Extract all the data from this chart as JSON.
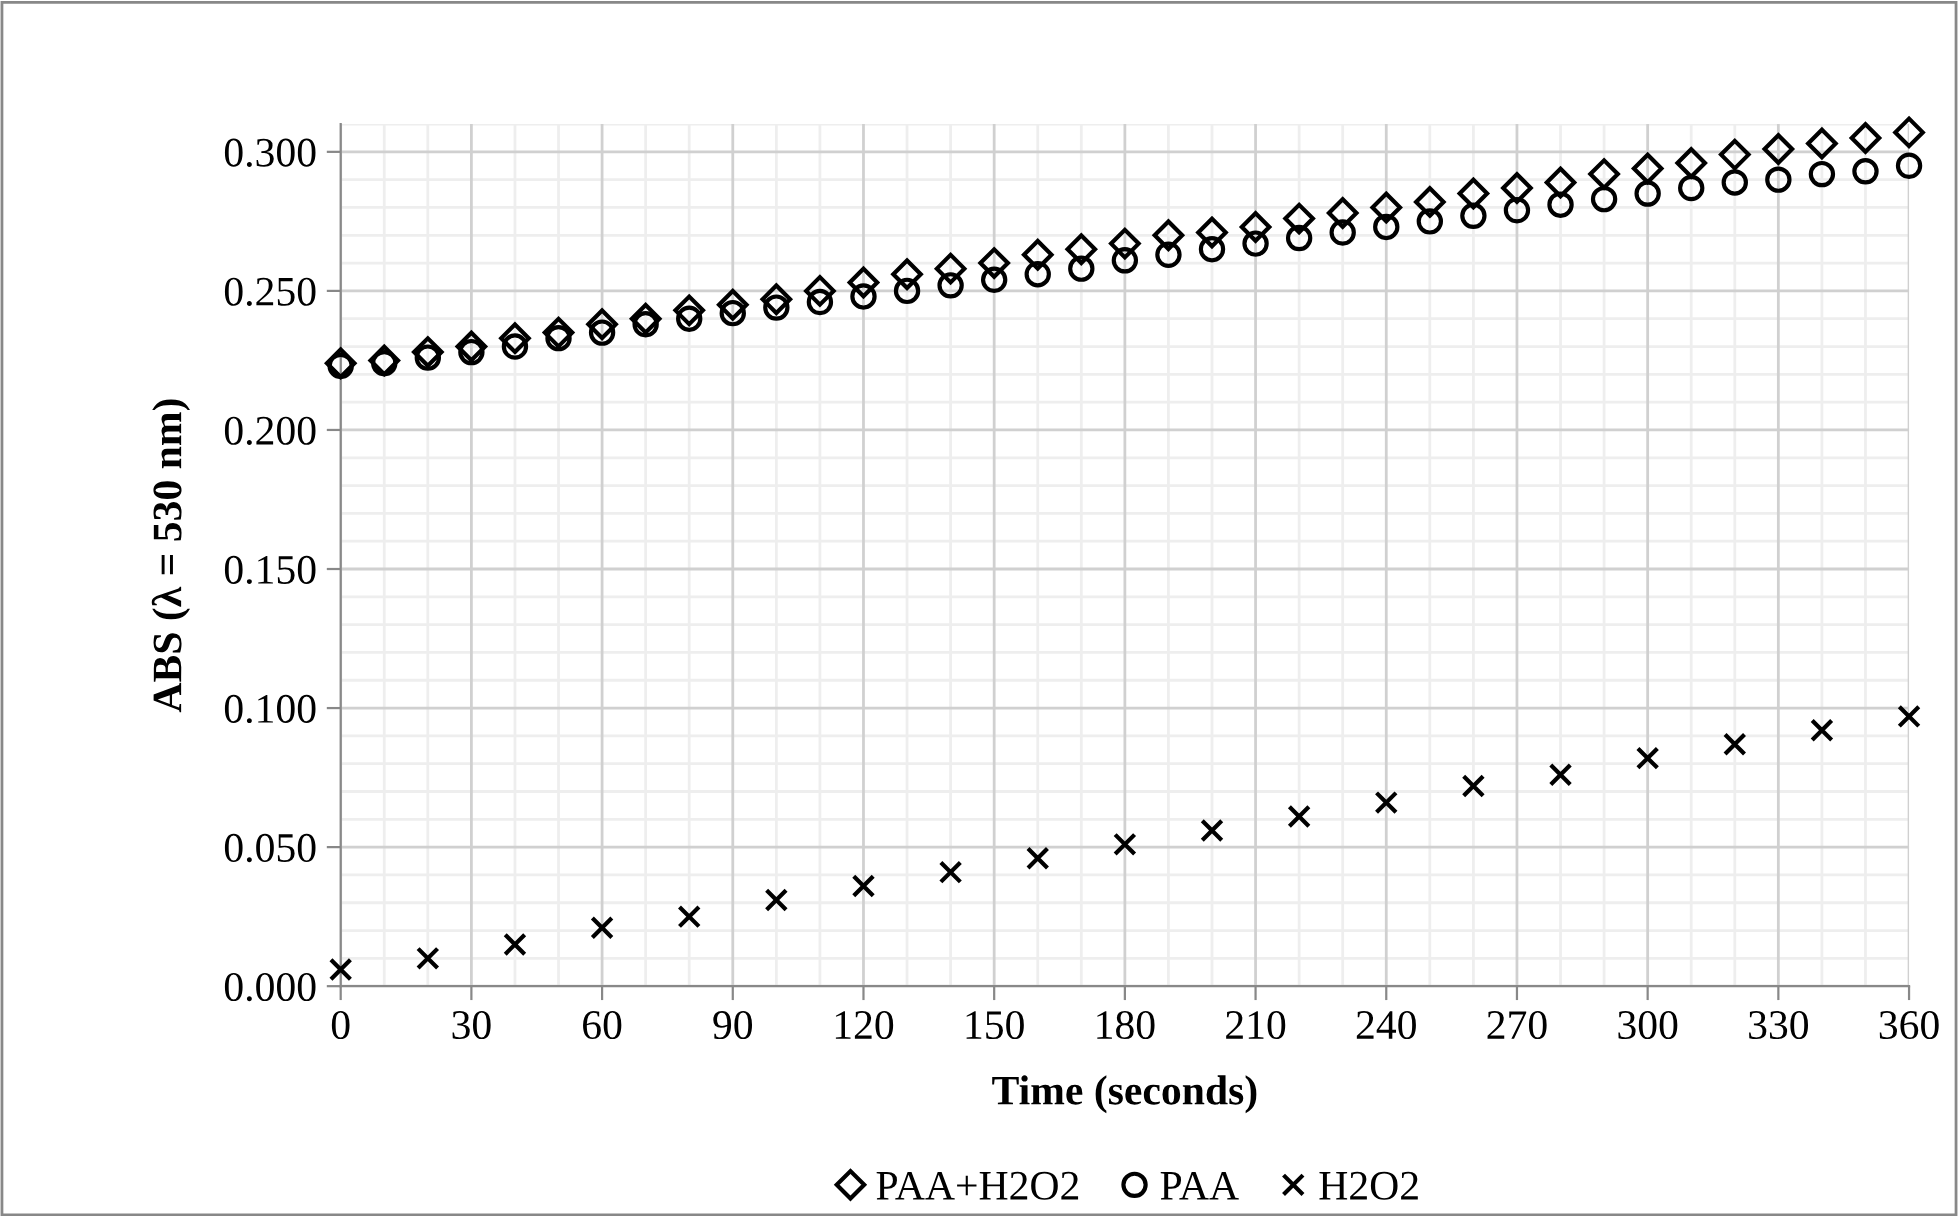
{
  "chart_data": {
    "type": "scatter",
    "xlabel": "Time (seconds)",
    "ylabel": "ABS (λ = 530 nm)",
    "xlim": [
      0,
      360
    ],
    "xticks": [
      0,
      30,
      60,
      90,
      120,
      150,
      180,
      210,
      240,
      270,
      300,
      330,
      360
    ],
    "ylim": [
      0,
      0.31
    ],
    "yticks": [
      {
        "value": 0,
        "label": "0.000"
      },
      {
        "value": 0.05,
        "label": "0.050"
      },
      {
        "value": 0.1,
        "label": "0.100"
      },
      {
        "value": 0.15,
        "label": "0.150"
      },
      {
        "value": 0.2,
        "label": "0.200"
      },
      {
        "value": 0.25,
        "label": "0.250"
      },
      {
        "value": 0.3,
        "label": "0.300"
      }
    ],
    "grid": true,
    "legend": "bottom",
    "series": [
      {
        "name": "PAA+H2O2",
        "color": "#000000",
        "marker": "diamond",
        "x": [
          0,
          10,
          20,
          30,
          40,
          50,
          60,
          70,
          80,
          90,
          100,
          110,
          120,
          130,
          140,
          150,
          160,
          170,
          180,
          190,
          200,
          210,
          220,
          230,
          240,
          250,
          260,
          270,
          280,
          290,
          300,
          310,
          320,
          330,
          340,
          350,
          360
        ],
        "values": [
          0.224,
          0.225,
          0.228,
          0.23,
          0.233,
          0.235,
          0.238,
          0.24,
          0.243,
          0.245,
          0.247,
          0.25,
          0.253,
          0.256,
          0.258,
          0.26,
          0.263,
          0.265,
          0.267,
          0.27,
          0.271,
          0.273,
          0.276,
          0.278,
          0.28,
          0.282,
          0.285,
          0.287,
          0.289,
          0.292,
          0.294,
          0.296,
          0.299,
          0.301,
          0.303,
          0.305,
          0.307
        ]
      },
      {
        "name": "PAA",
        "color": "#000000",
        "marker": "circle",
        "x": [
          0,
          10,
          20,
          30,
          40,
          50,
          60,
          70,
          80,
          90,
          100,
          110,
          120,
          130,
          140,
          150,
          160,
          170,
          180,
          190,
          200,
          210,
          220,
          230,
          240,
          250,
          260,
          270,
          280,
          290,
          300,
          310,
          320,
          330,
          340,
          350,
          360
        ],
        "values": [
          0.223,
          0.224,
          0.226,
          0.228,
          0.23,
          0.233,
          0.235,
          0.238,
          0.24,
          0.242,
          0.244,
          0.246,
          0.248,
          0.25,
          0.252,
          0.254,
          0.256,
          0.258,
          0.261,
          0.263,
          0.265,
          0.267,
          0.269,
          0.271,
          0.273,
          0.275,
          0.277,
          0.279,
          0.281,
          0.283,
          0.285,
          0.287,
          0.289,
          0.29,
          0.292,
          0.293,
          0.295
        ]
      },
      {
        "name": "H2O2",
        "color": "#000000",
        "marker": "cross",
        "x": [
          0,
          20,
          40,
          60,
          80,
          100,
          120,
          140,
          160,
          180,
          200,
          220,
          240,
          260,
          280,
          300,
          320,
          340,
          360
        ],
        "values": [
          0.006,
          0.01,
          0.015,
          0.021,
          0.025,
          0.031,
          0.036,
          0.041,
          0.046,
          0.051,
          0.056,
          0.061,
          0.066,
          0.072,
          0.076,
          0.082,
          0.087,
          0.092,
          0.097
        ]
      }
    ]
  }
}
